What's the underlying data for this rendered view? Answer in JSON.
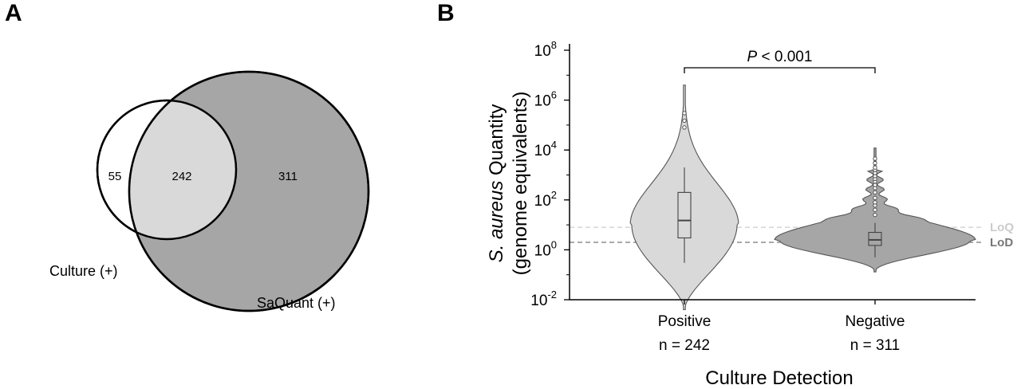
{
  "panels": {
    "a_label": "A",
    "b_label": "B"
  },
  "venn": {
    "sets": [
      "Culture (+)",
      "SaQuant (+)"
    ],
    "only_culture": "55",
    "overlap": "242",
    "only_saquant": "311",
    "colors": {
      "culture_only": "#ffffff",
      "overlap": "#d9d9d9",
      "saquant_only": "#a6a6a6"
    }
  },
  "chart_data": [
    {
      "type": "venn",
      "sets": [
        {
          "name": "Culture (+)",
          "only": 55
        },
        {
          "name": "SaQuant (+)",
          "only": 311
        }
      ],
      "intersection": 242
    },
    {
      "type": "violin",
      "xlabel": "Culture Detection",
      "ylabel_italic": "S. aureus",
      "ylabel_rest": " Quantity",
      "ylabel_line2": "(genome equivalents)",
      "yscale": "log10",
      "ylim": [
        0.01,
        100000000
      ],
      "yticks": [
        {
          "base": "10",
          "exp": "8",
          "value": 100000000
        },
        {
          "base": "10",
          "exp": "6",
          "value": 1000000
        },
        {
          "base": "10",
          "exp": "4",
          "value": 10000
        },
        {
          "base": "10",
          "exp": "2",
          "value": 100
        },
        {
          "base": "10",
          "exp": "0",
          "value": 1
        },
        {
          "base": "10",
          "exp": "-2",
          "value": 0.01
        }
      ],
      "categories": [
        {
          "name": "Positive",
          "n_label": "n = 242",
          "color": "#d9d9d9",
          "violin_min": 0.004,
          "violin_max": 4000000,
          "mode": 10,
          "width_at_mode": 0.55,
          "box": {
            "q1": 3,
            "median": 15,
            "q3": 200,
            "whisker_low": 0.3,
            "whisker_high": 2000
          },
          "outliers": [
            300000,
            150000,
            80000
          ]
        },
        {
          "name": "Negative",
          "n_label": "n = 311",
          "color": "#a6a6a6",
          "violin_min": 0.13,
          "violin_max": 12000,
          "mode": 2.5,
          "width_at_mode": 1.0,
          "box": {
            "q1": 1.5,
            "median": 2.5,
            "q3": 5,
            "whisker_low": 0.5,
            "whisker_high": 12
          },
          "outliers": [
            25,
            40,
            60,
            80,
            120,
            200,
            300,
            400,
            550,
            700,
            900,
            1200,
            1600,
            2000,
            3000,
            4500
          ]
        }
      ],
      "reference_lines": [
        {
          "label": "LoQ",
          "value": 8,
          "color": "#cccccc"
        },
        {
          "label": "LoD",
          "value": 2,
          "color": "#777777"
        }
      ],
      "significance": {
        "prefix_italic": "P",
        "text": " < 0.001",
        "between": [
          "Positive",
          "Negative"
        ]
      }
    }
  ]
}
